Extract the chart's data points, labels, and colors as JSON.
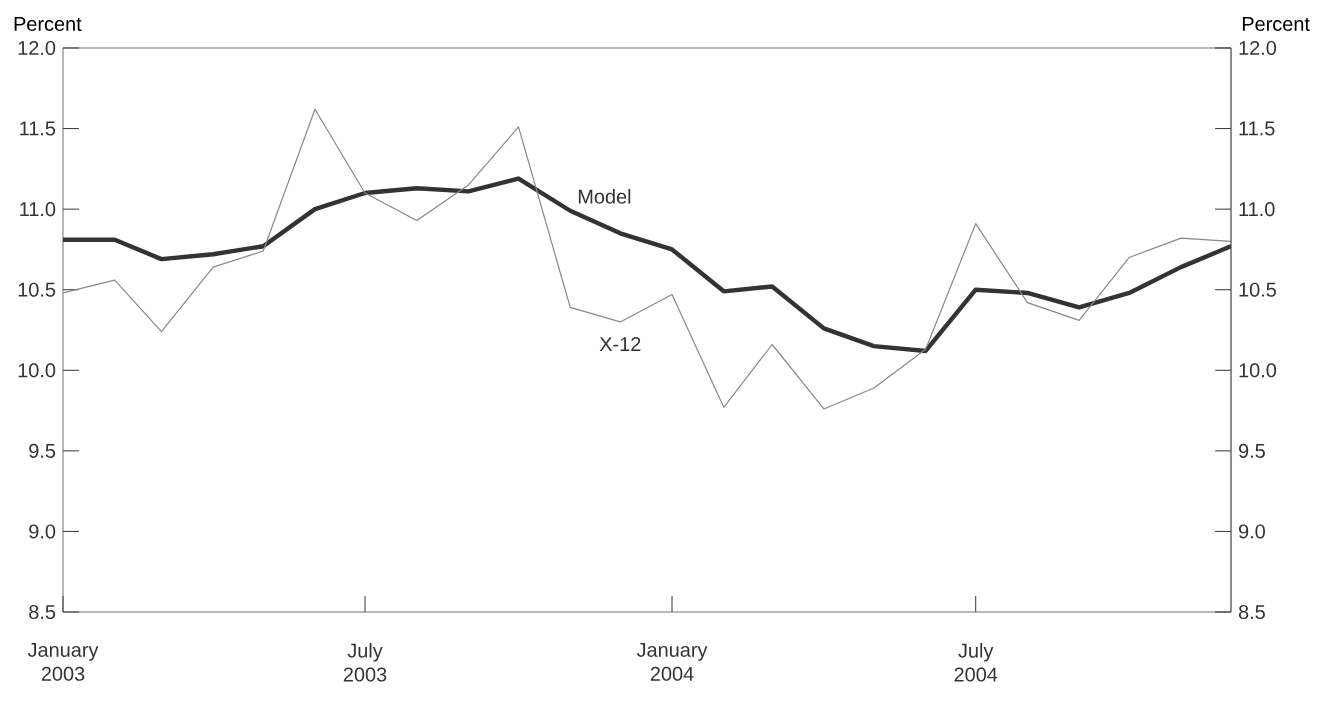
{
  "chart_data": {
    "type": "line",
    "ylabel": "Percent",
    "y2label": "Percent",
    "x": [
      "2003-01",
      "2003-02",
      "2003-03",
      "2003-04",
      "2003-05",
      "2003-06",
      "2003-07",
      "2003-08",
      "2003-09",
      "2003-10",
      "2003-11",
      "2003-12",
      "2004-01",
      "2004-02",
      "2004-03",
      "2004-04",
      "2004-05",
      "2004-06",
      "2004-07",
      "2004-08",
      "2004-09",
      "2004-10",
      "2004-11",
      "2004-12"
    ],
    "series": [
      {
        "name": "Model",
        "color": "#333333",
        "values": [
          10.81,
          10.81,
          10.69,
          10.72,
          10.77,
          11.0,
          11.1,
          11.13,
          11.11,
          11.19,
          10.99,
          10.85,
          10.75,
          10.49,
          10.52,
          10.26,
          10.15,
          10.12,
          10.5,
          10.48,
          10.39,
          10.48,
          10.64,
          10.77
        ]
      },
      {
        "name": "X-12",
        "color": "#888888",
        "values": [
          10.48,
          10.56,
          10.24,
          10.64,
          10.74,
          11.62,
          11.1,
          10.93,
          11.15,
          11.51,
          10.39,
          10.3,
          10.47,
          9.77,
          10.16,
          9.76,
          9.89,
          10.13,
          10.91,
          10.42,
          10.31,
          10.7,
          10.82,
          10.8
        ]
      }
    ],
    "xlim": [
      "2003-01",
      "2004-12"
    ],
    "xticks": [
      {
        "value": "2003-01",
        "label": "January 2003"
      },
      {
        "value": "2003-07",
        "label": "July 2003"
      },
      {
        "value": "2004-01",
        "label": "January 2004"
      },
      {
        "value": "2004-07",
        "label": "July 2004"
      }
    ],
    "ylim": [
      8.5,
      12.0
    ],
    "yticks": [
      {
        "value": 8.5,
        "label": "8.5"
      },
      {
        "value": 9.0,
        "label": "9.0"
      },
      {
        "value": 9.5,
        "label": "9.5"
      },
      {
        "value": 10.0,
        "label": "10.0"
      },
      {
        "value": 10.5,
        "label": "10.5"
      },
      {
        "value": 11.0,
        "label": "11.0"
      },
      {
        "value": 11.5,
        "label": "11.5"
      },
      {
        "value": 12.0,
        "label": "12.0"
      }
    ],
    "y2lim": [
      8.5,
      12.0
    ],
    "y2ticks": [
      {
        "value": 8.5,
        "label": "8.5"
      },
      {
        "value": 9.0,
        "label": "9.0"
      },
      {
        "value": 9.5,
        "label": "9.5"
      },
      {
        "value": 10.0,
        "label": "10.0"
      },
      {
        "value": 10.5,
        "label": "10.5"
      },
      {
        "value": 11.0,
        "label": "11.0"
      },
      {
        "value": 11.5,
        "label": "11.5"
      },
      {
        "value": 12.0,
        "label": "12.0"
      }
    ],
    "grid": false,
    "marker": "none",
    "line_style": "solid"
  }
}
